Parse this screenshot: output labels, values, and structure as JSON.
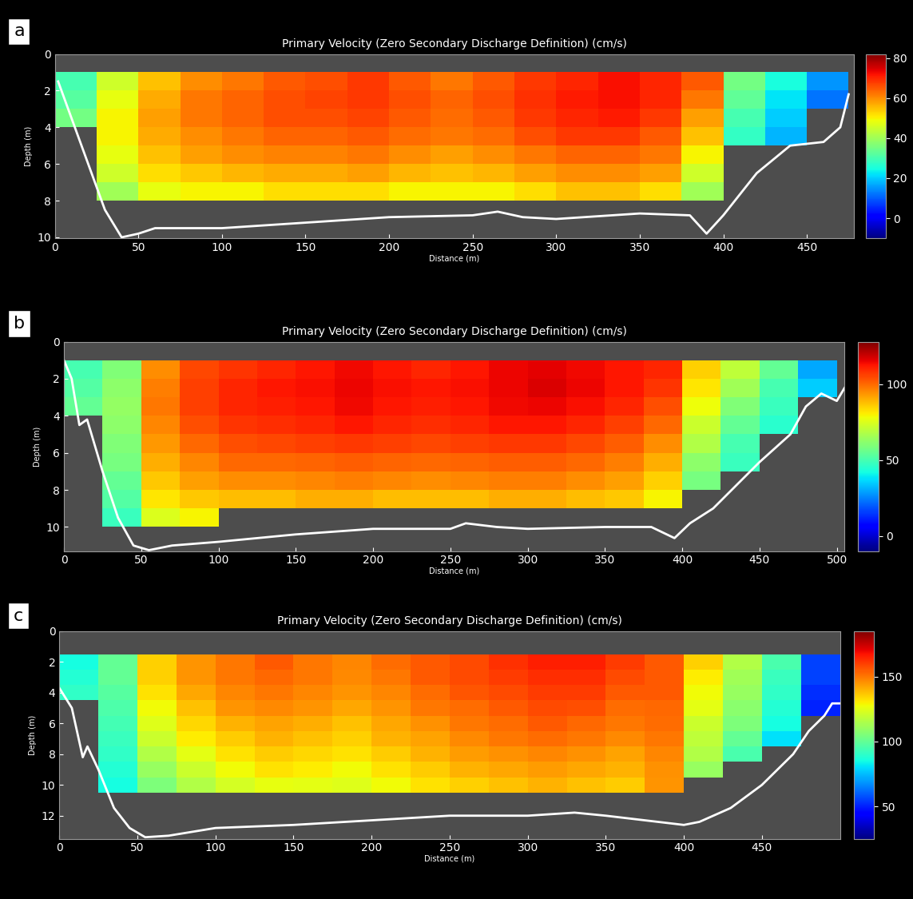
{
  "chart_data": [
    {
      "type": "heatmap",
      "panel_label": "a",
      "title": "Primary Velocity (Zero Secondary Discharge Definition) (cm/s)",
      "x_label": "Distance (m)",
      "y_label": "Depth (m)",
      "xlim": [
        0,
        478
      ],
      "ylim": [
        10.05,
        0
      ],
      "xticks": [
        0,
        50,
        100,
        150,
        200,
        250,
        300,
        350,
        400,
        450
      ],
      "yticks": [
        0,
        2,
        4,
        6,
        8,
        10
      ],
      "x_edges": [
        0,
        25,
        50,
        75,
        100,
        125,
        150,
        175,
        200,
        225,
        250,
        275,
        300,
        325,
        350,
        375,
        400,
        425,
        450,
        475
      ],
      "y_edges": [
        1,
        2,
        3,
        4,
        5,
        6,
        7,
        8
      ],
      "cells": [
        [
          30,
          45,
          55,
          60,
          62,
          65,
          66,
          68,
          65,
          62,
          65,
          68,
          70,
          72,
          70,
          65,
          35,
          25,
          15
        ],
        [
          32,
          48,
          57,
          62,
          64,
          66,
          67,
          68,
          66,
          64,
          66,
          69,
          71,
          72,
          70,
          62,
          33,
          22,
          12
        ],
        [
          35,
          50,
          58,
          62,
          64,
          66,
          66,
          67,
          65,
          63,
          65,
          68,
          70,
          71,
          68,
          58,
          30,
          20,
          null
        ],
        [
          null,
          50,
          57,
          60,
          62,
          64,
          64,
          65,
          63,
          62,
          63,
          66,
          68,
          68,
          65,
          55,
          28,
          18,
          null
        ],
        [
          null,
          48,
          55,
          58,
          60,
          61,
          61,
          62,
          60,
          58,
          60,
          62,
          64,
          64,
          62,
          50,
          null,
          null,
          null
        ],
        [
          null,
          45,
          52,
          54,
          56,
          57,
          57,
          58,
          56,
          55,
          56,
          58,
          60,
          60,
          58,
          45,
          null,
          null,
          null
        ],
        [
          null,
          40,
          48,
          50,
          50,
          52,
          52,
          52,
          50,
          50,
          50,
          52,
          55,
          55,
          52,
          40,
          null,
          null,
          null
        ]
      ],
      "colorbar_range": [
        -10,
        82
      ],
      "colorbar_ticks": [
        0,
        20,
        40,
        60,
        80
      ],
      "bed_line": {
        "x": [
          2,
          10,
          20,
          30,
          40,
          50,
          60,
          100,
          150,
          200,
          250,
          265,
          280,
          300,
          350,
          380,
          390,
          400,
          420,
          440,
          460,
          470,
          475
        ],
        "y": [
          1.5,
          3.5,
          6,
          8.5,
          10,
          9.8,
          9.5,
          9.5,
          9.2,
          8.9,
          8.8,
          8.6,
          8.9,
          9,
          8.7,
          8.8,
          9.8,
          8.8,
          6.5,
          5,
          4.8,
          4,
          2.2
        ]
      }
    },
    {
      "type": "heatmap",
      "panel_label": "b",
      "title": "Primary Velocity (Zero Secondary Discharge Definition) (cm/s)",
      "x_label": "Distance (m)",
      "y_label": "Depth (m)",
      "xlim": [
        0,
        505
      ],
      "ylim": [
        11.3,
        0
      ],
      "xticks": [
        0,
        50,
        100,
        150,
        200,
        250,
        300,
        350,
        400,
        450,
        500
      ],
      "yticks": [
        0,
        2,
        4,
        6,
        8,
        10
      ],
      "x_edges": [
        0,
        25,
        50,
        75,
        100,
        125,
        150,
        175,
        200,
        225,
        250,
        275,
        300,
        325,
        350,
        375,
        400,
        425,
        450,
        475,
        500
      ],
      "y_edges": [
        1,
        2,
        3,
        4,
        5,
        6,
        7,
        8,
        9,
        10
      ],
      "cells": [
        [
          50,
          60,
          95,
          105,
          108,
          110,
          112,
          114,
          112,
          110,
          112,
          115,
          116,
          114,
          112,
          110,
          85,
          70,
          55,
          30
        ],
        [
          52,
          62,
          97,
          106,
          110,
          112,
          113,
          115,
          113,
          112,
          113,
          115,
          117,
          115,
          112,
          108,
          82,
          65,
          50,
          35
        ],
        [
          55,
          63,
          98,
          106,
          110,
          111,
          112,
          114,
          112,
          111,
          112,
          114,
          115,
          113,
          110,
          104,
          78,
          60,
          48,
          null
        ],
        [
          null,
          62,
          96,
          104,
          108,
          109,
          110,
          112,
          110,
          109,
          110,
          112,
          112,
          110,
          106,
          100,
          72,
          55,
          45,
          null
        ],
        [
          null,
          60,
          93,
          100,
          104,
          105,
          106,
          107,
          106,
          105,
          106,
          107,
          107,
          105,
          102,
          95,
          68,
          50,
          null,
          null
        ],
        [
          null,
          58,
          90,
          96,
          100,
          100,
          101,
          102,
          101,
          100,
          101,
          102,
          102,
          100,
          97,
          90,
          62,
          48,
          null,
          null
        ],
        [
          null,
          55,
          86,
          92,
          95,
          95,
          96,
          97,
          96,
          95,
          96,
          97,
          97,
          95,
          92,
          85,
          58,
          null,
          null,
          null
        ],
        [
          null,
          52,
          82,
          86,
          88,
          88,
          90,
          90,
          88,
          88,
          88,
          90,
          90,
          88,
          86,
          80,
          null,
          null,
          null,
          null
        ],
        [
          null,
          48,
          75,
          80,
          null,
          null,
          null,
          null,
          null,
          null,
          null,
          null,
          null,
          null,
          null,
          null,
          null,
          null,
          null,
          null
        ]
      ],
      "colorbar_range": [
        -10,
        128
      ],
      "colorbar_ticks": [
        0,
        50,
        100
      ],
      "bed_line": {
        "x": [
          0,
          5,
          10,
          15,
          25,
          35,
          45,
          55,
          70,
          100,
          150,
          200,
          250,
          260,
          280,
          300,
          350,
          380,
          395,
          405,
          420,
          450,
          470,
          480,
          490,
          500,
          505
        ],
        "y": [
          1,
          2,
          4.5,
          4.2,
          7,
          9.5,
          11,
          11.25,
          11,
          10.8,
          10.4,
          10.1,
          10.1,
          9.8,
          10,
          10.1,
          10,
          10,
          10.6,
          9.8,
          9,
          6.5,
          5,
          3.5,
          2.8,
          3.2,
          2.5
        ]
      }
    },
    {
      "type": "heatmap",
      "panel_label": "c",
      "title": "Primary Velocity (Zero Secondary Discharge Definition) (cm/s)",
      "x_label": "Distance (m)",
      "y_label": "Depth (m)",
      "xlim": [
        0,
        500
      ],
      "ylim": [
        13.5,
        0
      ],
      "xticks": [
        0,
        50,
        100,
        150,
        200,
        250,
        300,
        350,
        400,
        450
      ],
      "yticks": [
        0,
        2,
        4,
        6,
        8,
        10,
        12
      ],
      "x_edges": [
        0,
        25,
        50,
        75,
        100,
        125,
        150,
        175,
        200,
        225,
        250,
        275,
        300,
        325,
        350,
        375,
        400,
        425,
        450,
        475,
        500
      ],
      "y_edges": [
        1.5,
        2.5,
        3.5,
        4.5,
        5.5,
        6.5,
        7.5,
        8.5,
        9.5,
        10.5
      ],
      "cells": [
        [
          85,
          100,
          135,
          145,
          150,
          155,
          150,
          148,
          152,
          155,
          158,
          162,
          165,
          165,
          160,
          155,
          135,
          115,
          95,
          55
        ],
        [
          88,
          100,
          135,
          145,
          150,
          153,
          150,
          147,
          150,
          155,
          158,
          160,
          163,
          163,
          158,
          155,
          130,
          112,
          92,
          55
        ],
        [
          90,
          98,
          132,
          142,
          148,
          150,
          148,
          145,
          148,
          152,
          156,
          158,
          160,
          160,
          155,
          155,
          128,
          110,
          90,
          52
        ],
        [
          null,
          96,
          128,
          138,
          145,
          147,
          145,
          142,
          145,
          150,
          152,
          155,
          158,
          157,
          152,
          153,
          125,
          108,
          88,
          50
        ],
        [
          null,
          94,
          124,
          134,
          140,
          143,
          141,
          138,
          142,
          146,
          150,
          152,
          155,
          153,
          150,
          152,
          120,
          105,
          85,
          null
        ],
        [
          null,
          92,
          120,
          130,
          136,
          140,
          138,
          135,
          140,
          143,
          147,
          150,
          152,
          150,
          147,
          150,
          118,
          100,
          80,
          null
        ],
        [
          null,
          90,
          115,
          125,
          132,
          136,
          134,
          132,
          136,
          140,
          144,
          146,
          148,
          146,
          143,
          148,
          115,
          95,
          null,
          null
        ],
        [
          null,
          88,
          110,
          120,
          128,
          132,
          130,
          128,
          132,
          136,
          140,
          142,
          144,
          142,
          140,
          146,
          110,
          null,
          null,
          null
        ],
        [
          null,
          85,
          105,
          115,
          122,
          126,
          125,
          124,
          128,
          132,
          135,
          138,
          140,
          138,
          136,
          145,
          null,
          null,
          null,
          null
        ]
      ],
      "colorbar_range": [
        25,
        185
      ],
      "colorbar_ticks": [
        50,
        100,
        150
      ],
      "bed_line": {
        "x": [
          0,
          8,
          15,
          18,
          25,
          35,
          45,
          55,
          70,
          100,
          150,
          200,
          250,
          300,
          330,
          350,
          400,
          410,
          430,
          450,
          470,
          480,
          490,
          495,
          500
        ],
        "y": [
          3.7,
          5,
          8.2,
          7.5,
          9,
          11.5,
          12.8,
          13.4,
          13.3,
          12.8,
          12.6,
          12.3,
          12,
          12,
          11.8,
          12,
          12.6,
          12.4,
          11.5,
          10,
          8,
          6.5,
          5.5,
          4.7,
          4.7
        ]
      }
    }
  ]
}
